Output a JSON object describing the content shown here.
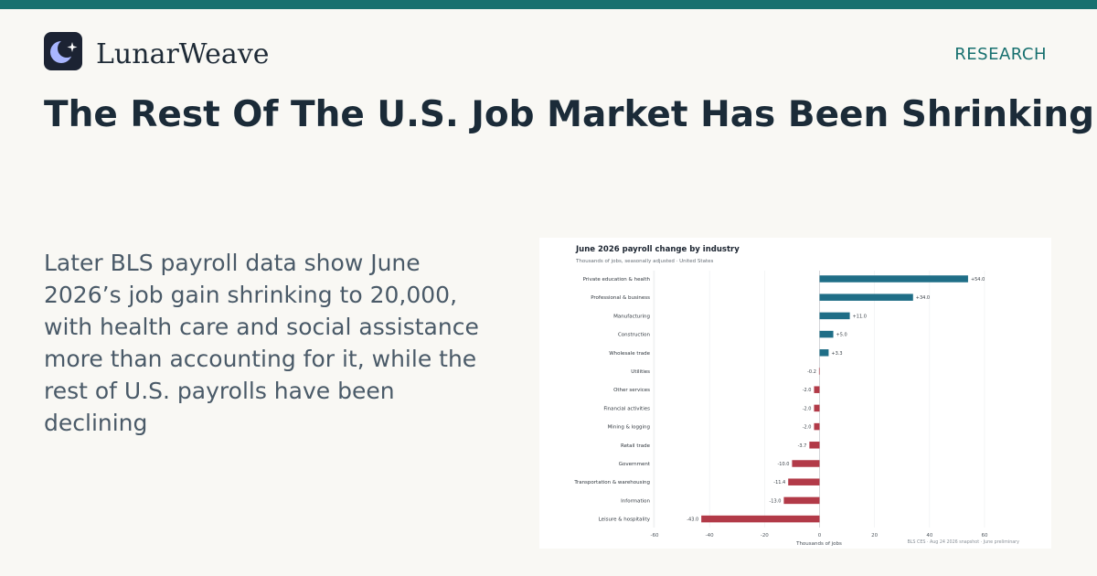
{
  "brand": {
    "name": "LunarWeave",
    "colors": {
      "accent": "#17706f",
      "logo_bg": "#1c2333",
      "logo_moon": "#a9b6ff"
    }
  },
  "nav": {
    "section_label": "RESEARCH"
  },
  "article": {
    "headline": "The Rest Of The U.S. Job Market Has Been Shrinking",
    "summary": "Later BLS payroll data show June 2026’s job gain shrinking to 20,000, with health care and social assistance more than accounting for it, while the rest of U.S. payrolls have been declining"
  },
  "chart_data": {
    "type": "bar",
    "orientation": "horizontal",
    "title": "June 2026 payroll change by industry",
    "subtitle": "Thousands of jobs, seasonally adjusted  ·  United States",
    "xlabel": "Thousands of jobs",
    "xlim": [
      -60,
      60
    ],
    "xticks": [
      -60,
      -40,
      -20,
      0,
      20,
      40,
      60
    ],
    "grid": true,
    "source_note": "BLS CES  ·  Aug 24 2026 snapshot  ·  June preliminary",
    "colors": {
      "positive": "#1f6e87",
      "negative": "#b23a48"
    },
    "categories": [
      "Private education & health",
      "Professional & business",
      "Manufacturing",
      "Construction",
      "Wholesale trade",
      "Utilities",
      "Other services",
      "Financial activities",
      "Mining & logging",
      "Retail trade",
      "Government",
      "Transportation & warehousing",
      "Information",
      "Leisure & hospitality"
    ],
    "values": [
      54.0,
      34.0,
      11.0,
      5.0,
      3.3,
      -0.2,
      -2.0,
      -2.0,
      -2.0,
      -3.7,
      -10.0,
      -11.4,
      -13.0,
      -43.0
    ],
    "value_labels": [
      "+54.0",
      "+34.0",
      "+11.0",
      "+5.0",
      "+3.3",
      "-0.2",
      "-2.0",
      "-2.0",
      "-2.0",
      "-3.7",
      "-10.0",
      "-11.4",
      "-13.0",
      "-43.0"
    ]
  }
}
